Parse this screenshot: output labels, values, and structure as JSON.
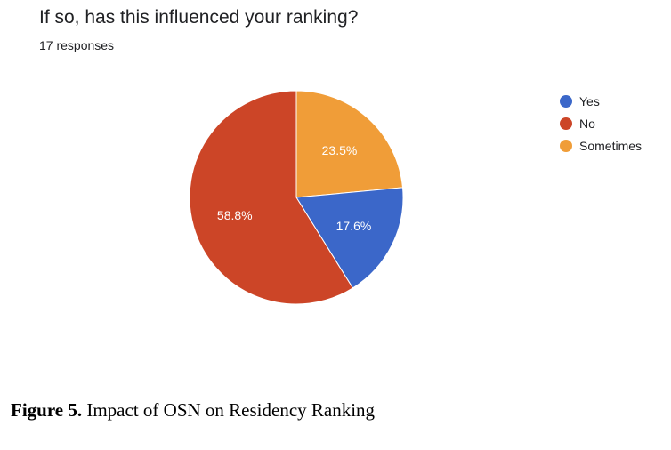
{
  "chart_data": {
    "type": "pie",
    "title": "If so, has this influenced your ranking?",
    "subtitle": "17 responses",
    "slices": [
      {
        "label": "Yes",
        "value": 17.6,
        "value_label": "17.6%",
        "color": "#3b67c9"
      },
      {
        "label": "No",
        "value": 58.8,
        "value_label": "58.8%",
        "color": "#cc4527"
      },
      {
        "label": "Sometimes",
        "value": 23.5,
        "value_label": "23.5%",
        "color": "#f09d38"
      }
    ],
    "legend_position": "right"
  },
  "caption": {
    "label": "Figure 5.",
    "text": " Impact of OSN on Residency Ranking"
  }
}
